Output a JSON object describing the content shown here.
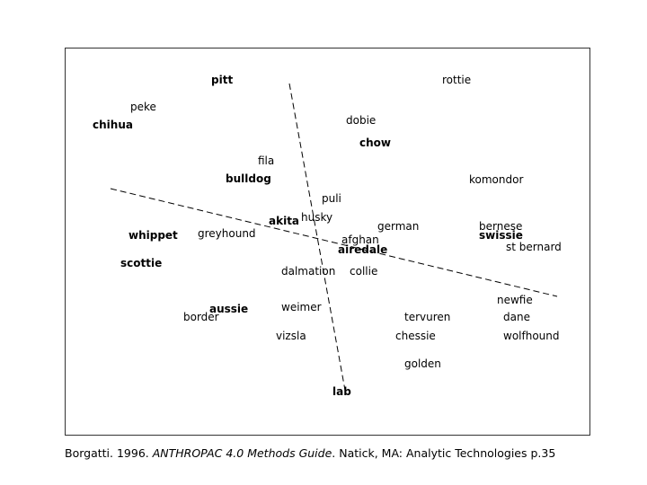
{
  "labels": [
    "pitt",
    "rottie",
    "peke",
    "chihua",
    "dobie",
    "chow",
    "fila",
    "bulldog",
    "komondor",
    "puli",
    "akita",
    "husky",
    "german",
    "bernese",
    "swissie",
    "whippet",
    "greyhound",
    "afghan",
    "airedale",
    "st bernard",
    "scottie",
    "dalmation",
    "collie",
    "newfie",
    "aussie",
    "border",
    "weimer",
    "tervuren",
    "dane",
    "vizsla",
    "chessie",
    "wolfhound",
    "golden",
    "lab"
  ],
  "caption": {
    "author": "Borgatti. 1996. ",
    "title": "ANTHROPAC 4.0 Methods Guide",
    "rest": ". Natick, MA: Analytic Technologies p.35"
  }
}
